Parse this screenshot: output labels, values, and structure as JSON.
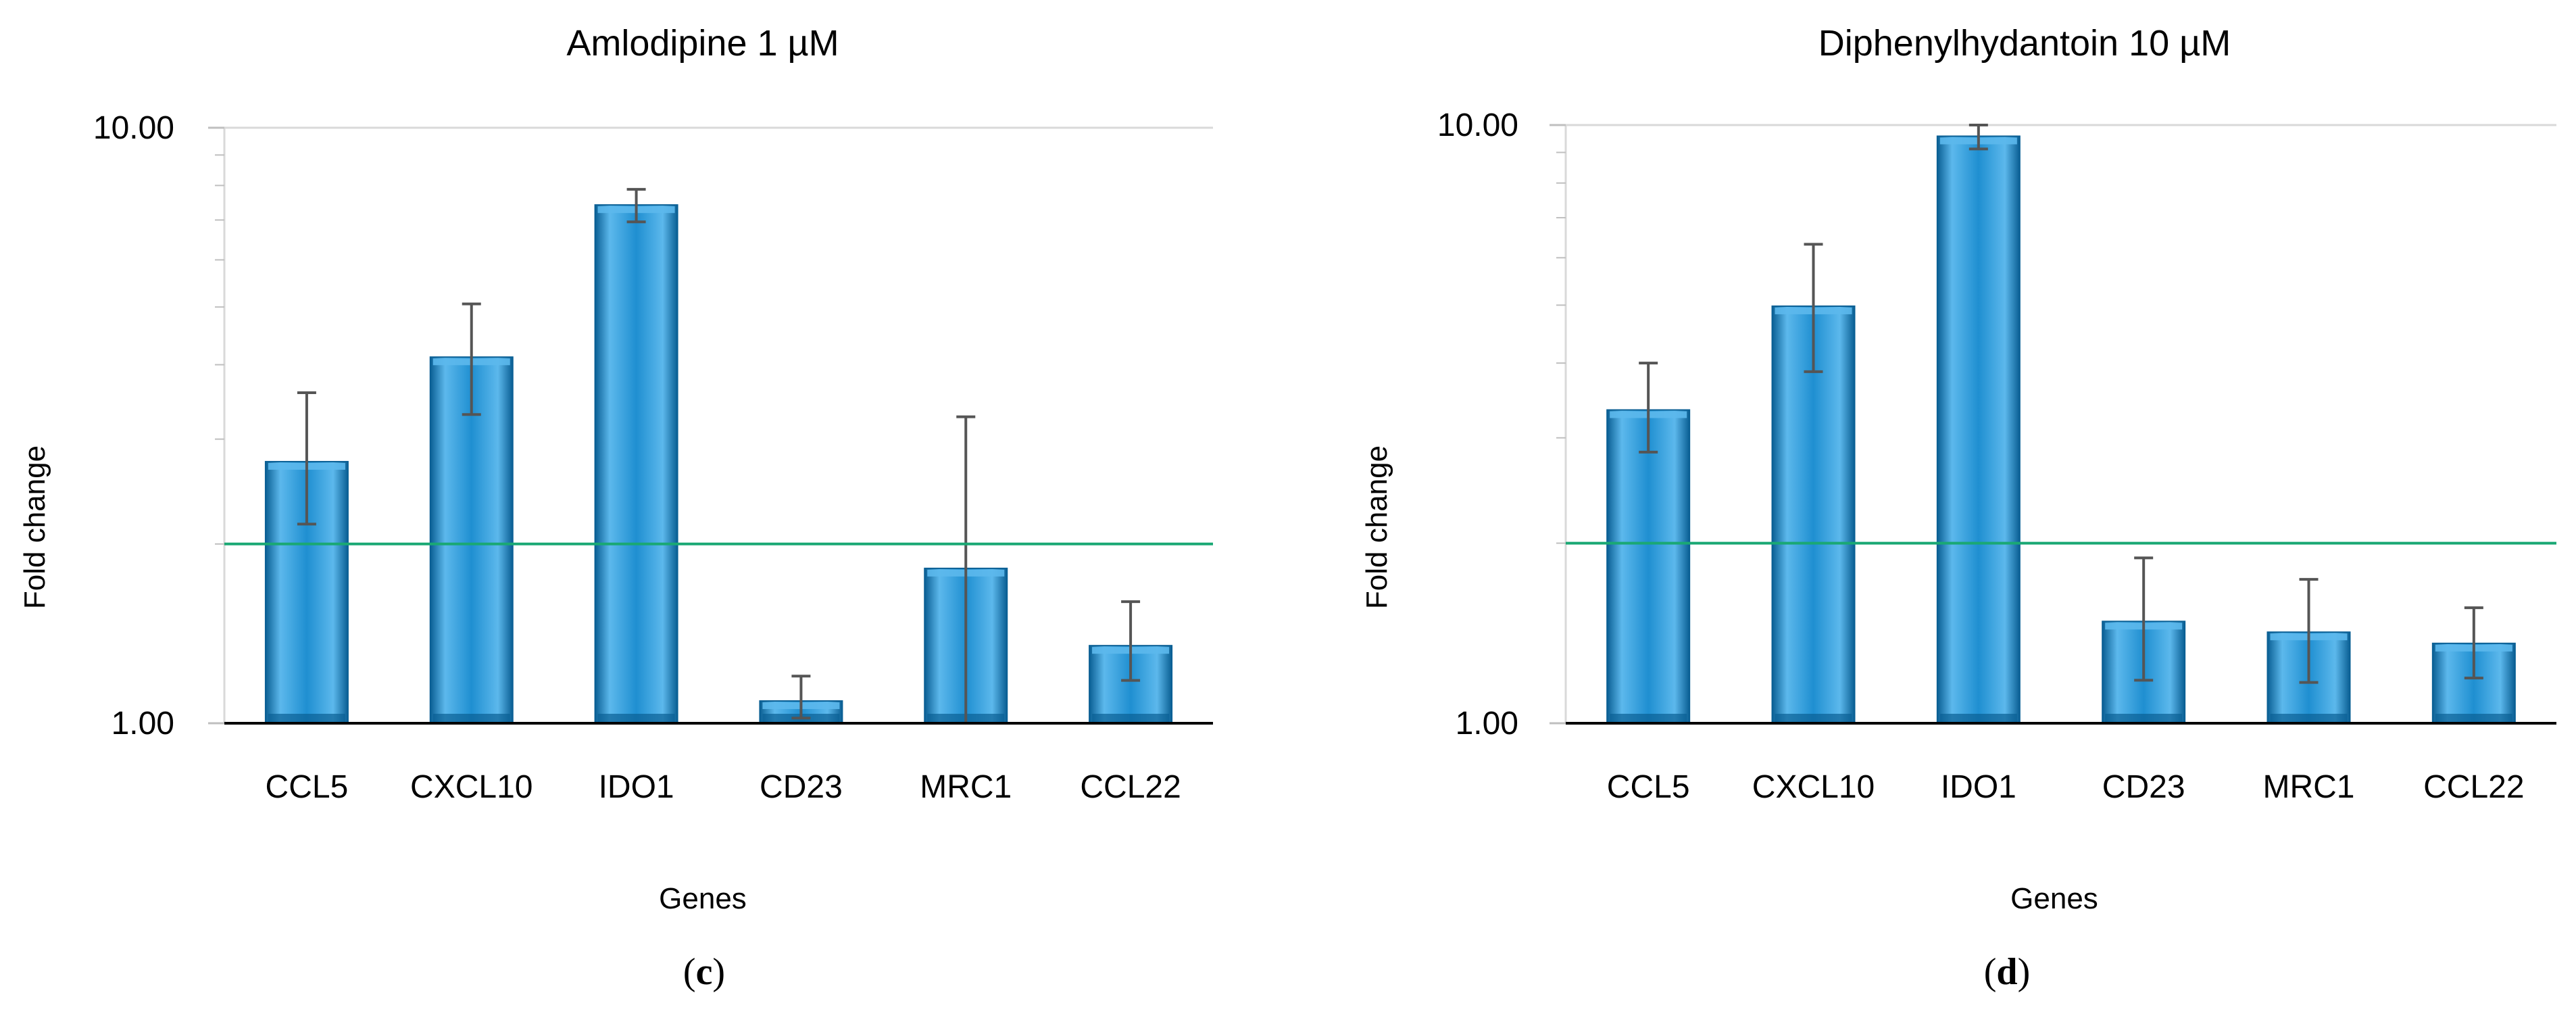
{
  "chart_data": [
    {
      "type": "bar",
      "panel_label": "c",
      "title": "Amlodipine 1 µM",
      "xlabel": "Genes",
      "ylabel": "Fold change",
      "yscale": "log",
      "ylim": [
        1,
        10
      ],
      "yticks": [
        1,
        10
      ],
      "ytick_labels": [
        "1.00",
        "10.00"
      ],
      "threshold": 2,
      "categories": [
        "CCL5",
        "CXCL10",
        "IDO1",
        "CD23",
        "MRC1",
        "CCL22"
      ],
      "values": [
        2.75,
        4.12,
        7.42,
        1.09,
        1.82,
        1.35
      ],
      "error_low": [
        2.16,
        3.3,
        6.95,
        1.02,
        1.0,
        1.18
      ],
      "error_high": [
        3.59,
        5.06,
        7.88,
        1.2,
        3.27,
        1.6
      ]
    },
    {
      "type": "bar",
      "panel_label": "d",
      "title": "Diphenylhydantoin 10 µM",
      "xlabel": "Genes",
      "ylabel": "Fold change",
      "yscale": "log",
      "ylim": [
        1,
        10
      ],
      "yticks": [
        1,
        10
      ],
      "ytick_labels": [
        "1.00",
        "10.00"
      ],
      "threshold": 2,
      "categories": [
        "CCL5",
        "CXCL10",
        "IDO1",
        "CD23",
        "MRC1",
        "CCL22"
      ],
      "values": [
        3.34,
        4.98,
        9.58,
        1.48,
        1.42,
        1.36
      ],
      "error_low": [
        2.84,
        3.87,
        9.12,
        1.18,
        1.17,
        1.19
      ],
      "error_high": [
        4.0,
        6.32,
        10.0,
        1.89,
        1.74,
        1.56
      ]
    }
  ],
  "colors": {
    "bar_fill": "#1f8fd1",
    "bar_light": "#5cb8ec",
    "bar_dark": "#0a5f94",
    "threshold_line": "#1aa874",
    "error_bar": "#555555",
    "axis": "#000000",
    "gridline": "#d9d9d9",
    "text": "#000000"
  }
}
